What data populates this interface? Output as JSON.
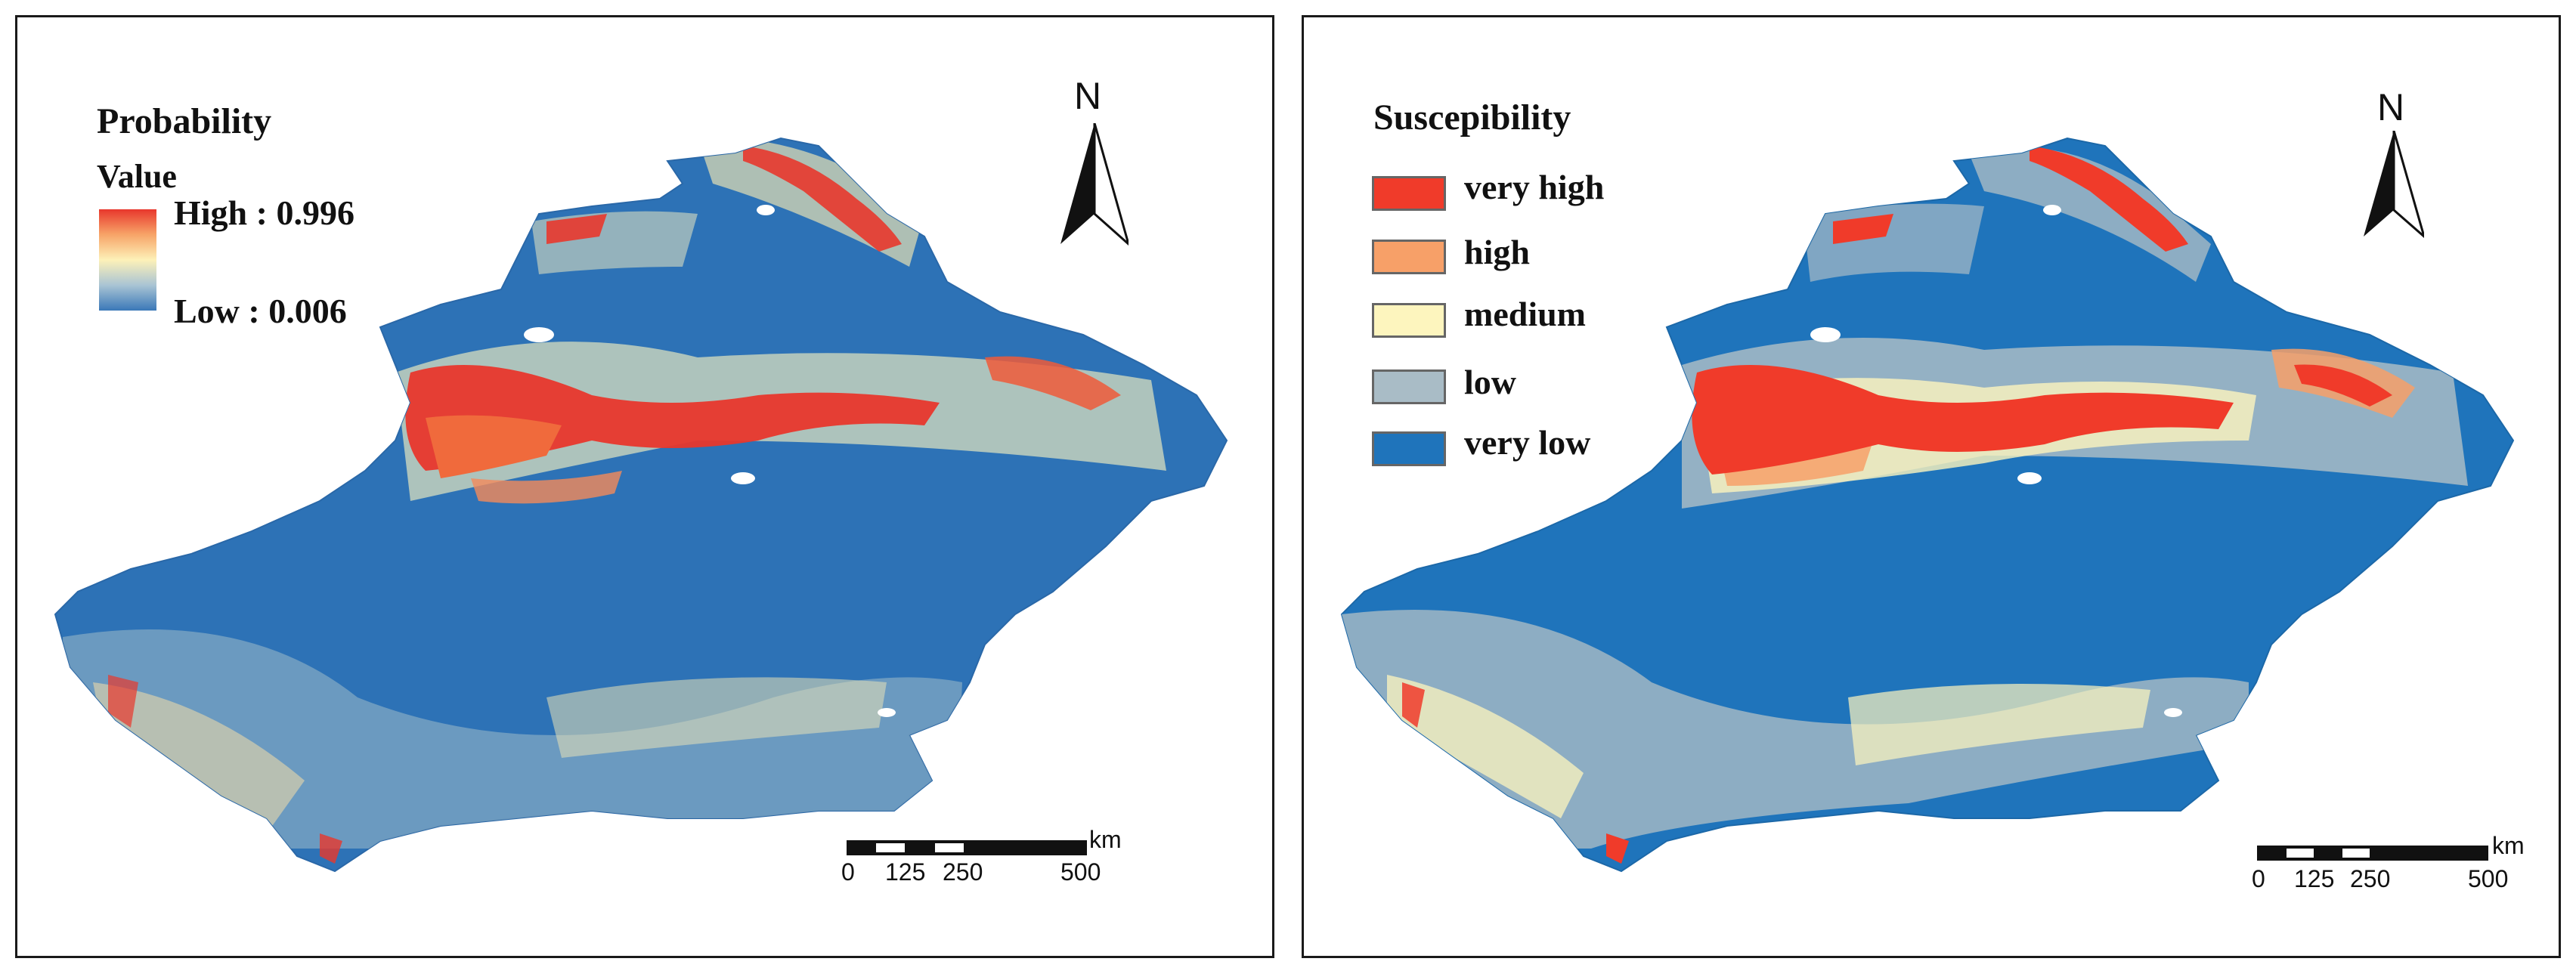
{
  "left_panel": {
    "legend_title": "Probability",
    "legend_subtitle": "Value",
    "high_label": "High : 0.996",
    "low_label": "Low : 0.006",
    "colors": {
      "high": "#e8372c",
      "mid": "#fdf1b8",
      "low": "#3a78b8"
    }
  },
  "right_panel": {
    "legend_title": "Suscepibility",
    "classes": [
      {
        "label": "very high",
        "color": "#f03b2a"
      },
      {
        "label": "high",
        "color": "#f7a068"
      },
      {
        "label": "medium",
        "color": "#fdf5be"
      },
      {
        "label": "low",
        "color": "#a9bcc6"
      },
      {
        "label": "very low",
        "color": "#1f74bb"
      }
    ]
  },
  "north_arrow": {
    "letter": "N"
  },
  "scale_bar": {
    "unit": "km",
    "ticks": [
      "0",
      "125",
      "250",
      "500"
    ]
  }
}
